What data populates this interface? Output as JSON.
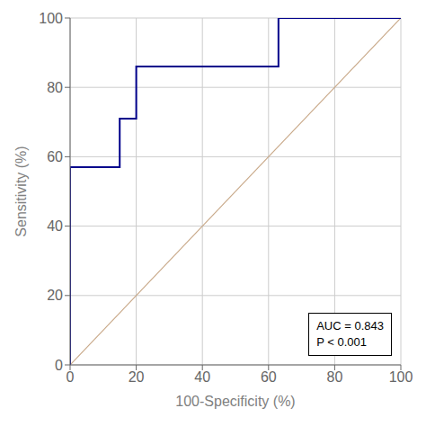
{
  "chart_data": {
    "type": "line",
    "xlabel": "100-Specificity (%)",
    "ylabel": "Sensitivity (%)",
    "xlim": [
      0,
      100
    ],
    "ylim": [
      0,
      100
    ],
    "xticks": [
      0,
      20,
      40,
      60,
      80,
      100
    ],
    "yticks": [
      0,
      20,
      40,
      60,
      80,
      100
    ],
    "grid": true,
    "annotations": [
      "AUC = 0.843",
      "P < 0.001"
    ],
    "series": [
      {
        "x": [
          0,
          100
        ],
        "values": [
          0,
          100
        ],
        "color": "#C8A888"
      },
      {
        "x": [
          0,
          0,
          15,
          15,
          20,
          20,
          63,
          63,
          100
        ],
        "values": [
          0,
          57,
          57,
          71,
          71,
          86,
          86,
          100,
          100
        ],
        "color": "#00008B"
      }
    ]
  }
}
